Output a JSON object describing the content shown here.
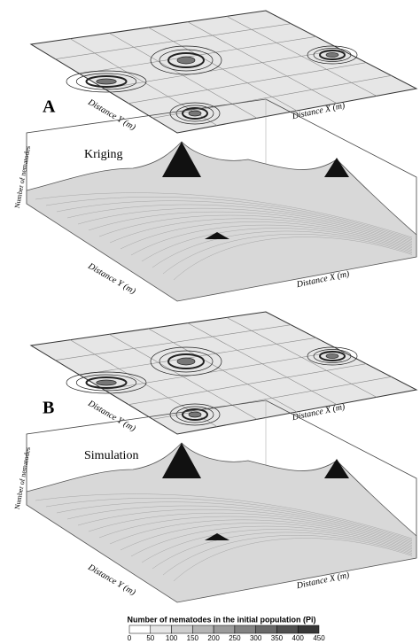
{
  "panels": [
    {
      "label": "A",
      "method": "Kriging",
      "y_axis_label": "Distance Y (m)",
      "x_axis_label": "Distance X (m)",
      "z_axis_label": "Number of nematodes"
    },
    {
      "label": "B",
      "method": "Simulation",
      "y_axis_label": "Distance Y (m)",
      "x_axis_label": "Distance X (m)",
      "z_axis_label": "Number of nematodes"
    }
  ],
  "legend": {
    "title": "Number of nematodes in the initial population (Pi)",
    "ticks": [
      "0",
      "50",
      "100",
      "150",
      "200",
      "250",
      "300",
      "350",
      "400",
      "450"
    ]
  }
}
